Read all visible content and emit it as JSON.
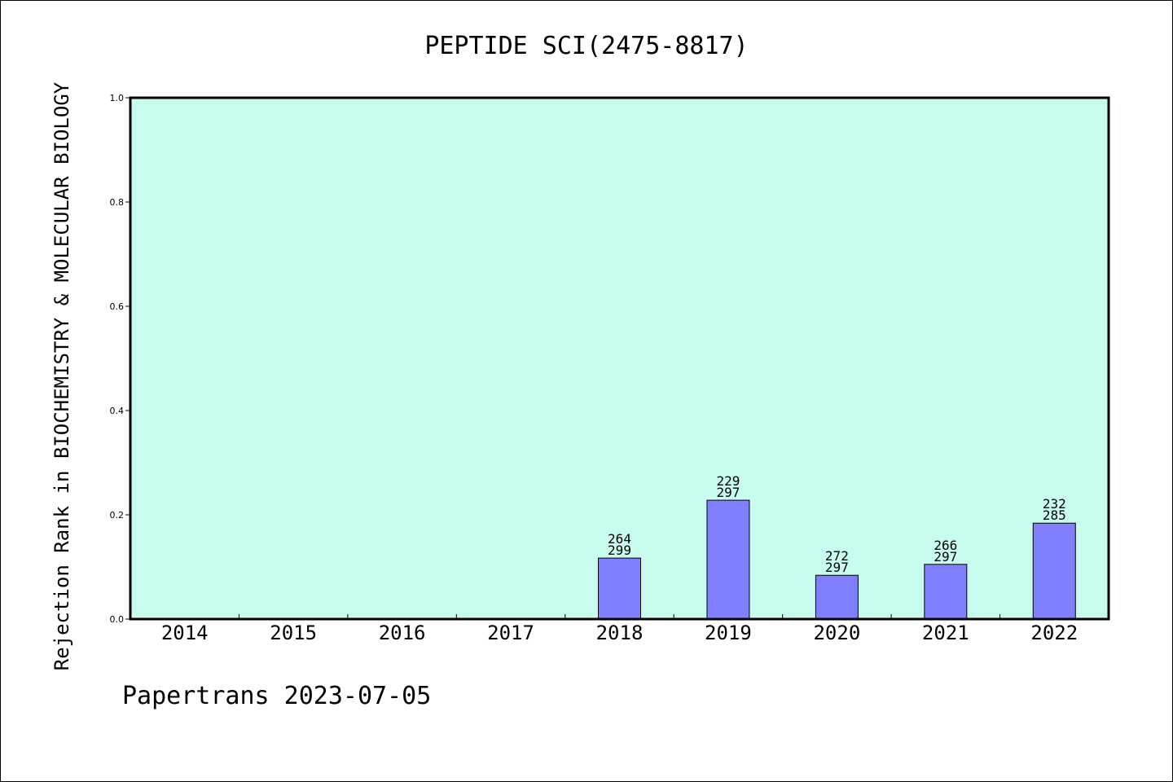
{
  "chart_data": {
    "type": "bar",
    "title": "PEPTIDE SCI(2475-8817)",
    "ylabel": "Rejection Rank in BIOCHEMISTRY & MOLECULAR BIOLOGY",
    "xlabel": "",
    "footer": "Papertrans 2023-07-05",
    "categories": [
      "2014",
      "2015",
      "2016",
      "2017",
      "2018",
      "2019",
      "2020",
      "2021",
      "2022"
    ],
    "values": [
      null,
      null,
      null,
      null,
      0.117,
      0.228,
      0.084,
      0.105,
      0.184
    ],
    "bar_labels": [
      null,
      null,
      null,
      null,
      {
        "rank": "264",
        "total": "299"
      },
      {
        "rank": "229",
        "total": "297"
      },
      {
        "rank": "272",
        "total": "297"
      },
      {
        "rank": "266",
        "total": "297"
      },
      {
        "rank": "232",
        "total": "285"
      }
    ],
    "ylim": [
      0,
      1.0
    ],
    "yticks": [
      0.0,
      0.2,
      0.4,
      0.6,
      0.8,
      1.0
    ],
    "ytick_labels": [
      "0.0",
      "0.2",
      "0.4",
      "0.6",
      "0.8",
      "1.0"
    ],
    "grid": false,
    "colors": {
      "plot_background": "#c8fcee",
      "bar_fill": "#8080ff",
      "bar_stroke": "#000000"
    }
  }
}
